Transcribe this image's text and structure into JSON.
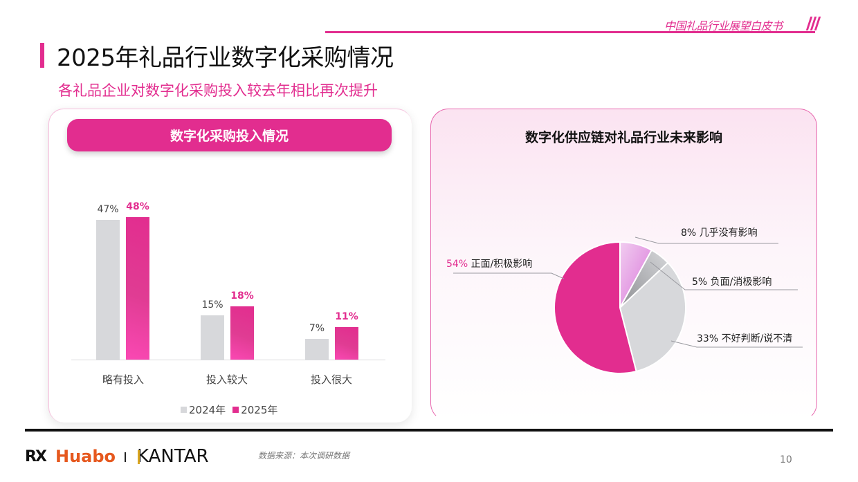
{
  "header": {
    "brand_text": "中国礼品行业展望白皮书",
    "title": "2025年礼品行业数字化采购情况",
    "subtitle": "各礼品企业对数字化采购投入较去年相比再次提升"
  },
  "left_panel": {
    "pill_title": "数字化采购投入情况",
    "legend": [
      {
        "label": "2024年",
        "color": "#d7d8db"
      },
      {
        "label": "2025年",
        "color": "#e22d8f"
      }
    ]
  },
  "right_panel": {
    "title": "数字化供应链对礼品行业未来影响",
    "labels": [
      {
        "pct": "8%",
        "text": "几乎没有影响"
      },
      {
        "pct": "5%",
        "text": "负面/消极影响"
      },
      {
        "pct": "33%",
        "text": "不好判断/说不清"
      },
      {
        "pct": "54%",
        "text": "正面/积极影响"
      }
    ]
  },
  "footer": {
    "logo_rx": "RX",
    "logo_huabo": "Huabo",
    "logo_kantar": "KANTAR",
    "source": "数据来源：本次调研数据",
    "page_number": "10"
  },
  "colors": {
    "accent": "#e22d8f",
    "grey_bar": "#d7d8db",
    "huabo_orange": "#e6581e"
  },
  "chart_data": [
    {
      "type": "bar",
      "title": "数字化采购投入情况",
      "categories": [
        "略有投入",
        "投入较大",
        "投入很大"
      ],
      "series": [
        {
          "name": "2024年",
          "values": [
            47,
            15,
            7
          ],
          "labels": [
            "47%",
            "15%",
            "7%"
          ],
          "color": "#d7d8db"
        },
        {
          "name": "2025年",
          "values": [
            48,
            18,
            11
          ],
          "labels": [
            "48%",
            "18%",
            "11%"
          ],
          "color": "#e22d8f"
        }
      ],
      "xlabel": "",
      "ylabel": "",
      "unit": "%",
      "grid": false,
      "legend_position": "bottom"
    },
    {
      "type": "pie",
      "title": "数字化供应链对礼品行业未来影响",
      "categories": [
        "几乎没有影响",
        "负面/消极影响",
        "不好判断/说不清",
        "正面/积极影响"
      ],
      "values": [
        8,
        5,
        33,
        54
      ],
      "colors": [
        "#e08ee0",
        "#a9aaae",
        "#d7d8db",
        "#e22d8f"
      ],
      "start_angle": "12 o'clock, clockwise",
      "labels_outside": true
    }
  ]
}
